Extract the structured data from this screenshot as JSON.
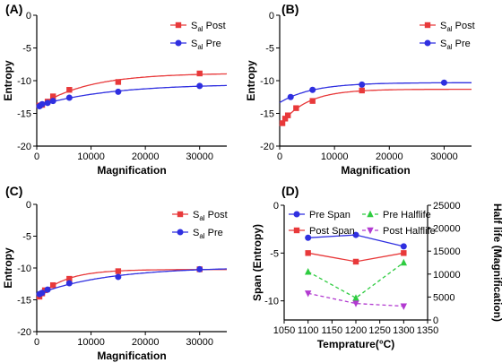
{
  "chart_data": [
    {
      "panel_label": "(A)",
      "type": "scatter",
      "title": "",
      "xlabel": "Magnification",
      "ylabel": "Entropy",
      "xlim": [
        0,
        35000
      ],
      "ylim": [
        -20,
        0
      ],
      "xticks": [
        "0",
        "10000",
        "20000",
        "30000"
      ],
      "yticks": [
        "-20",
        "-15",
        "-10",
        "-5",
        "0"
      ],
      "legend_position": "top-right",
      "series": [
        {
          "name_main": "S",
          "name_sub": "al",
          "name_rest": " Post",
          "color": "#e8393a",
          "marker": "square",
          "fit": true,
          "x": [
            500,
            1000,
            2000,
            3000,
            6000,
            15000,
            30000
          ],
          "y": [
            -13.8,
            -13.7,
            -13.2,
            -12.4,
            -11.4,
            -10.2,
            -8.9
          ]
        },
        {
          "name_main": "S",
          "name_sub": "al",
          "name_rest": " Pre",
          "color": "#2f2fe0",
          "marker": "circle",
          "fit": true,
          "x": [
            500,
            1000,
            2000,
            3000,
            6000,
            15000,
            30000
          ],
          "y": [
            -13.9,
            -13.6,
            -13.4,
            -13.1,
            -12.6,
            -11.7,
            -10.8
          ]
        }
      ]
    },
    {
      "panel_label": "(B)",
      "type": "scatter",
      "title": "",
      "xlabel": "Magnification",
      "ylabel": "Entropy",
      "xlim": [
        0,
        35000
      ],
      "ylim": [
        -20,
        0
      ],
      "xticks": [
        "0",
        "10000",
        "20000",
        "30000"
      ],
      "yticks": [
        "-20",
        "-15",
        "-10",
        "-5",
        "0"
      ],
      "legend_position": "top-right",
      "series": [
        {
          "name_main": "S",
          "name_sub": "al",
          "name_rest": " Post",
          "color": "#e8393a",
          "marker": "square",
          "fit": true,
          "x": [
            500,
            1000,
            1500,
            3000,
            6000,
            15000
          ],
          "y": [
            -16.5,
            -15.8,
            -15.3,
            -14.2,
            -13.1,
            -11.5
          ]
        },
        {
          "name_main": "S",
          "name_sub": "al",
          "name_rest": " Pre",
          "color": "#2f2fe0",
          "marker": "circle",
          "fit": true,
          "x": [
            2000,
            6000,
            15000,
            30000
          ],
          "y": [
            -12.5,
            -11.4,
            -10.6,
            -10.3
          ]
        }
      ]
    },
    {
      "panel_label": "(C)",
      "type": "scatter",
      "title": "",
      "xlabel": "Magnification",
      "ylabel": "Entropy",
      "xlim": [
        0,
        35000
      ],
      "ylim": [
        -20,
        0
      ],
      "xticks": [
        "0",
        "10000",
        "20000",
        "30000"
      ],
      "yticks": [
        "-20",
        "-15",
        "-10",
        "-5",
        "0"
      ],
      "legend_position": "top-right",
      "series": [
        {
          "name_main": "S",
          "name_sub": "al",
          "name_rest": " Post",
          "color": "#e8393a",
          "marker": "square",
          "fit": true,
          "x": [
            500,
            1000,
            1500,
            3000,
            6000,
            15000,
            30000
          ],
          "y": [
            -14.5,
            -14.0,
            -13.5,
            -12.7,
            -11.7,
            -10.5,
            -10.2
          ]
        },
        {
          "name_main": "S",
          "name_sub": "al",
          "name_rest": " Pre",
          "color": "#2f2fe0",
          "marker": "circle",
          "fit": true,
          "x": [
            500,
            1000,
            2000,
            6000,
            15000,
            30000
          ],
          "y": [
            -14.1,
            -13.9,
            -13.4,
            -12.4,
            -11.4,
            -10.2
          ]
        }
      ]
    },
    {
      "panel_label": "(D)",
      "type": "line",
      "title": "",
      "xlabel": "Temprature(°C)",
      "ylabel": "Span (Entropy)",
      "y2label": "Half life (Magnification)",
      "xlim": [
        1050,
        1350
      ],
      "ylim": [
        -12,
        0
      ],
      "y2lim": [
        0,
        25000
      ],
      "xticks": [
        "1050",
        "1100",
        "1150",
        "1200",
        "1250",
        "1300",
        "1350"
      ],
      "yticks": [
        "-10",
        "-5",
        "0"
      ],
      "y2ticks": [
        "0",
        "5000",
        "10000",
        "15000",
        "20000",
        "25000"
      ],
      "legend_position": "top",
      "series": [
        {
          "name": "Pre Span",
          "axis": "left",
          "color": "#2f2fe0",
          "marker": "circle",
          "dashed": false,
          "x": [
            1100,
            1200,
            1300
          ],
          "y": [
            -3.4,
            -3.1,
            -4.3
          ]
        },
        {
          "name": "Post Span",
          "axis": "left",
          "color": "#e8393a",
          "marker": "square",
          "dashed": false,
          "x": [
            1100,
            1200,
            1300
          ],
          "y": [
            -5.0,
            -5.9,
            -5.0
          ]
        },
        {
          "name": "Pre Halflife",
          "axis": "right",
          "color": "#2ecc40",
          "marker": "triangle-up",
          "dashed": true,
          "x": [
            1100,
            1200,
            1300
          ],
          "y": [
            10500,
            4800,
            12500
          ]
        },
        {
          "name": "Post Halflife",
          "axis": "right",
          "color": "#b23ad0",
          "marker": "triangle-down",
          "dashed": true,
          "x": [
            1100,
            1200,
            1300
          ],
          "y": [
            5800,
            3600,
            3000
          ]
        }
      ]
    }
  ]
}
